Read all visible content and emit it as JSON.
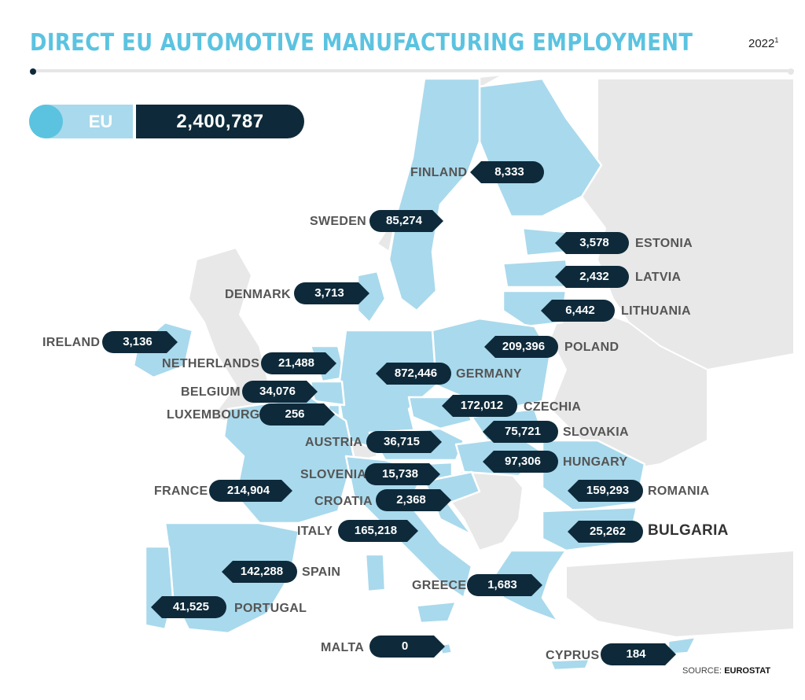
{
  "title": "DIRECT EU AUTOMOTIVE MANUFACTURING EMPLOYMENT",
  "year": "2022",
  "year_note": "1",
  "eu_total": {
    "label": "EU",
    "value": "2,400,787"
  },
  "countries": [
    {
      "name": "FINLAND",
      "value": "8,333"
    },
    {
      "name": "SWEDEN",
      "value": "85,274"
    },
    {
      "name": "ESTONIA",
      "value": "3,578"
    },
    {
      "name": "LATVIA",
      "value": "2,432"
    },
    {
      "name": "LITHUANIA",
      "value": "6,442"
    },
    {
      "name": "DENMARK",
      "value": "3,713"
    },
    {
      "name": "IRELAND",
      "value": "3,136"
    },
    {
      "name": "POLAND",
      "value": "209,396"
    },
    {
      "name": "NETHERLANDS",
      "value": "21,488"
    },
    {
      "name": "GERMANY",
      "value": "872,446"
    },
    {
      "name": "BELGIUM",
      "value": "34,076"
    },
    {
      "name": "LUXEMBOURG",
      "value": "256"
    },
    {
      "name": "CZECHIA",
      "value": "172,012"
    },
    {
      "name": "SLOVAKIA",
      "value": "75,721"
    },
    {
      "name": "AUSTRIA",
      "value": "36,715"
    },
    {
      "name": "HUNGARY",
      "value": "97,306"
    },
    {
      "name": "SLOVENIA",
      "value": "15,738"
    },
    {
      "name": "FRANCE",
      "value": "214,904"
    },
    {
      "name": "ROMANIA",
      "value": "159,293"
    },
    {
      "name": "CROATIA",
      "value": "2,368"
    },
    {
      "name": "ITALY",
      "value": "165,218"
    },
    {
      "name": "BULGARIA",
      "value": "25,262"
    },
    {
      "name": "SPAIN",
      "value": "142,288"
    },
    {
      "name": "GREECE",
      "value": "1,683"
    },
    {
      "name": "PORTUGAL",
      "value": "41,525"
    },
    {
      "name": "MALTA",
      "value": "0"
    },
    {
      "name": "CYPRUS",
      "value": "184"
    }
  ],
  "source": {
    "prefix": "SOURCE:",
    "name": "EUROSTAT"
  },
  "colors": {
    "title": "#5bc3e0",
    "eu_land": "#a9d9ec",
    "non_eu_land": "#e8e8e8",
    "tag_bg": "#0e2a3a",
    "accent_circle": "#5bc3e0"
  }
}
